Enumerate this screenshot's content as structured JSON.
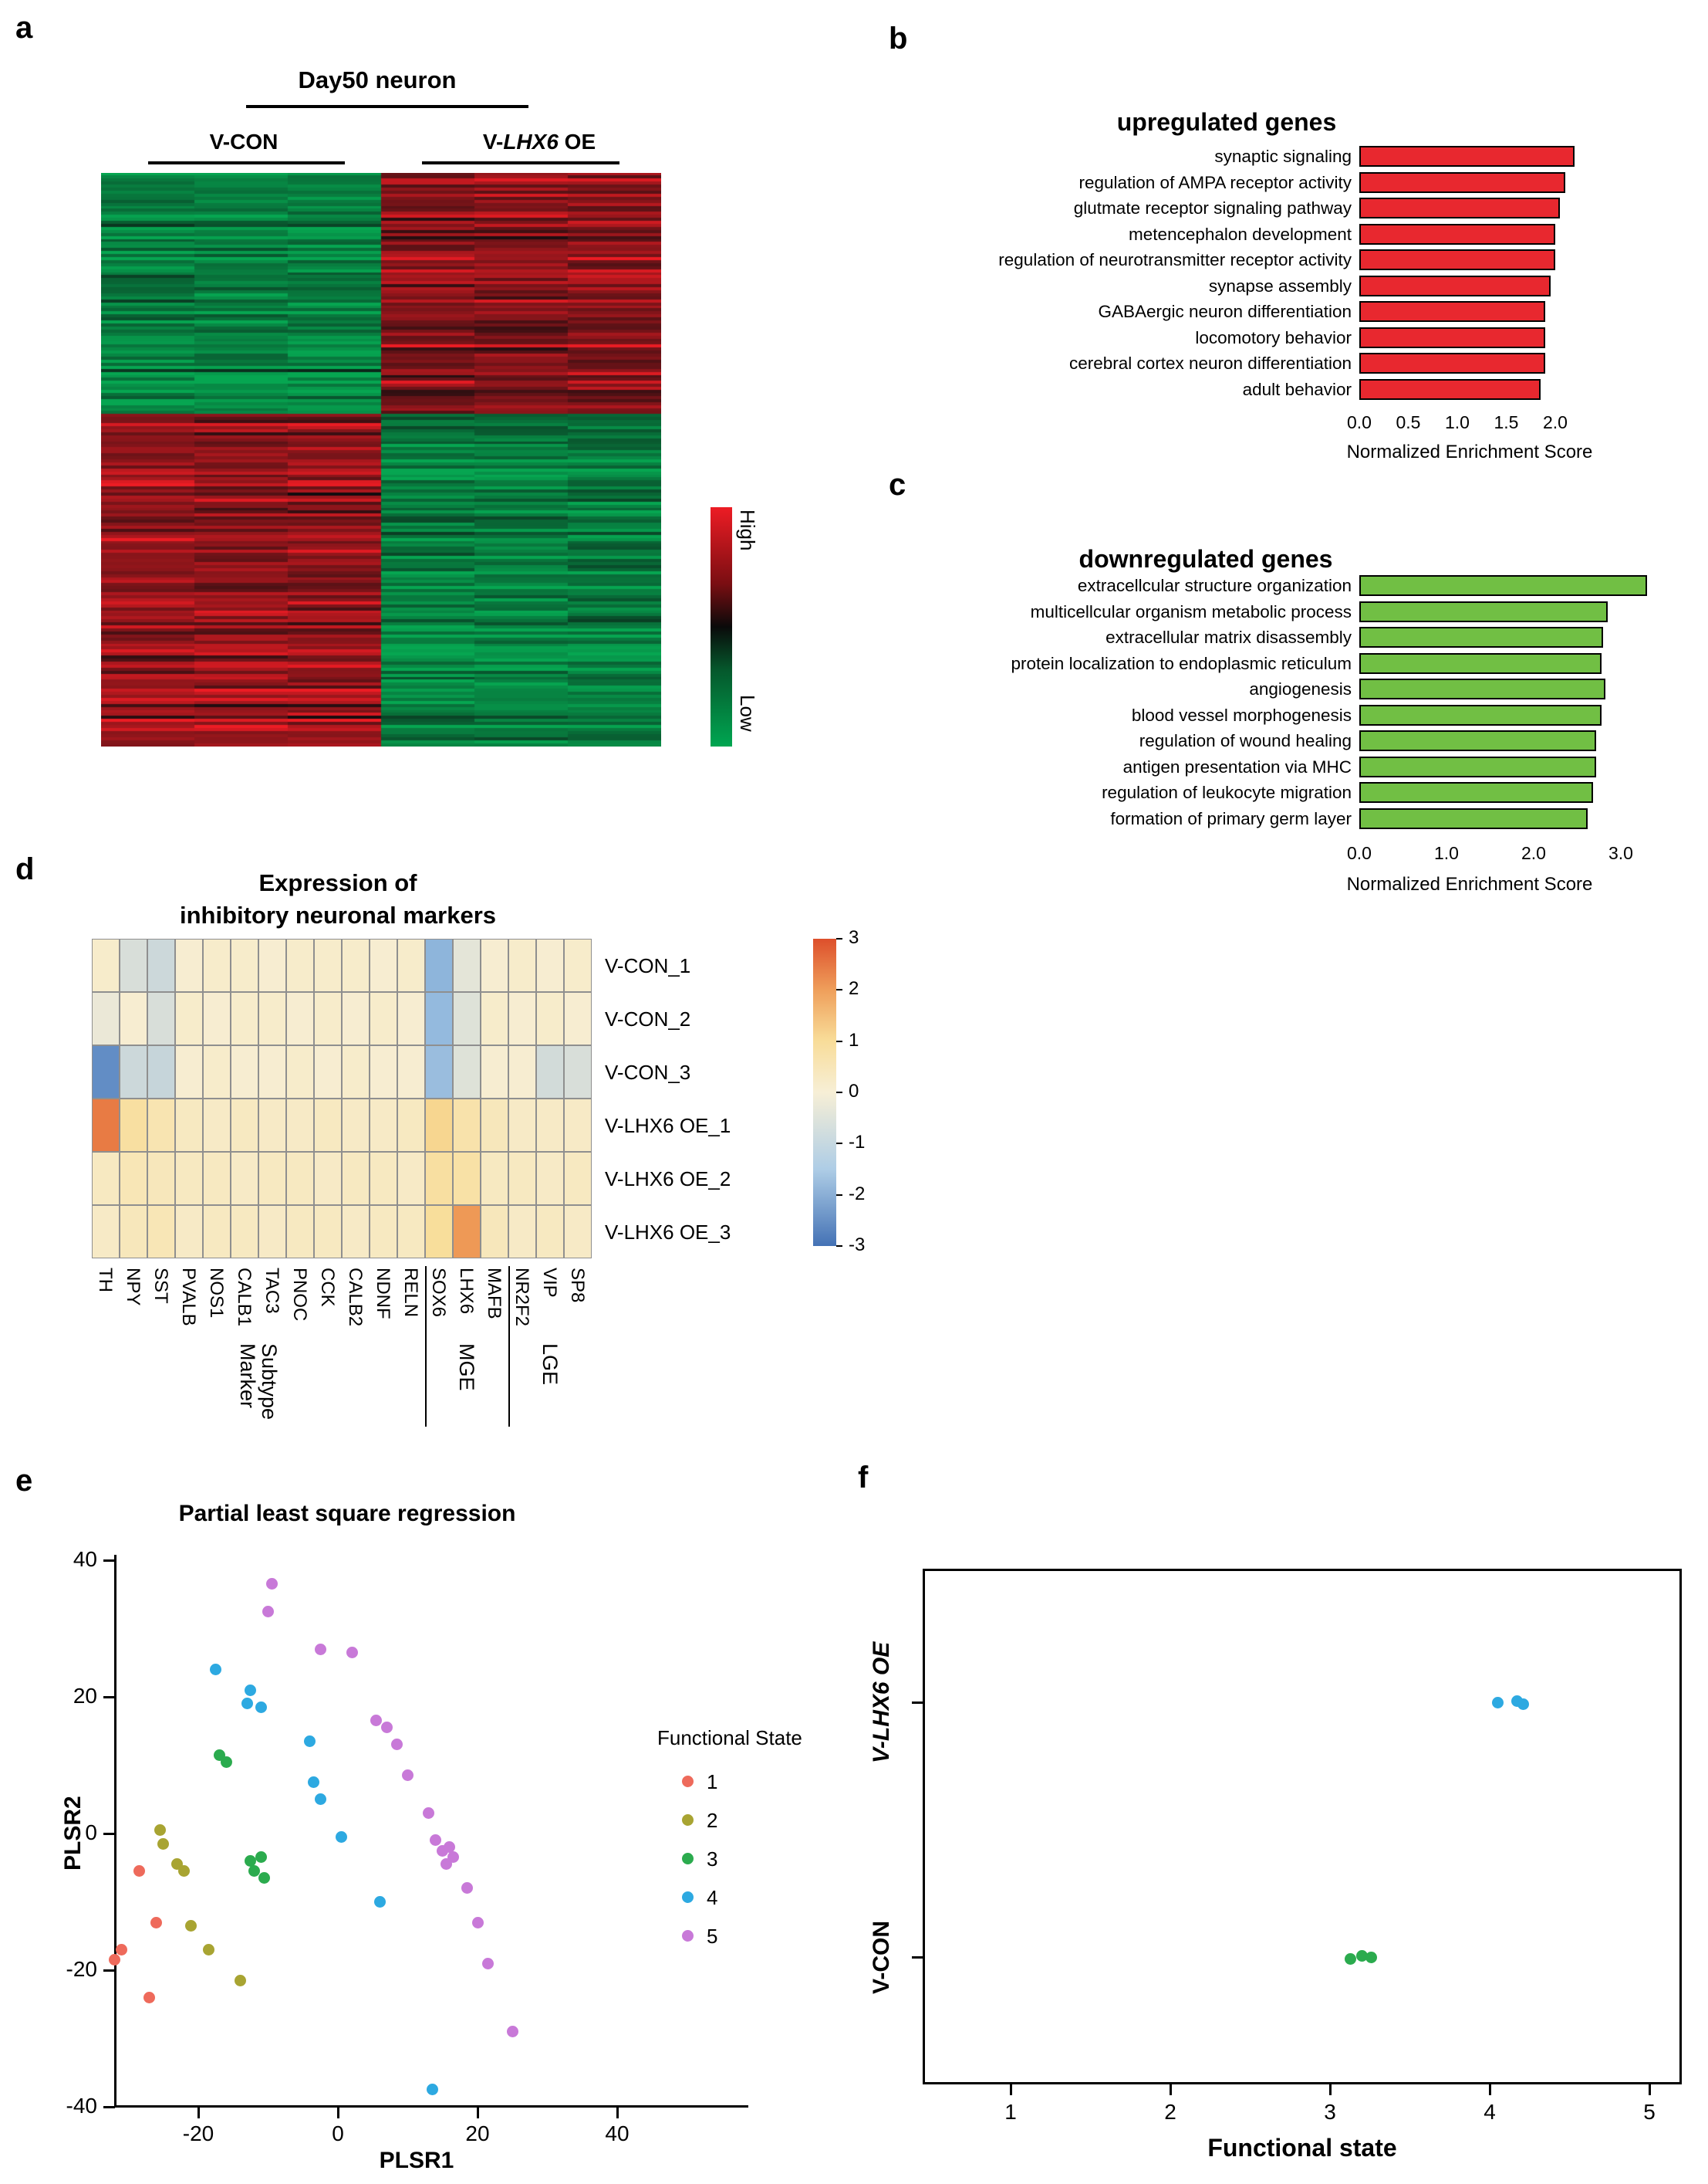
{
  "panels": {
    "a": {
      "label": "a",
      "group2": {
        "pre": "V-",
        "italic": "LHX6",
        "post": " OE"
      },
      "legend_high": "High",
      "legend_low": "Low"
    },
    "b": {
      "label": "b"
    },
    "c": {
      "label": "c"
    },
    "d": {
      "label": "d"
    },
    "e": {
      "label": "e"
    },
    "f": {
      "label": "f"
    }
  },
  "chart_data": [
    {
      "id": "a",
      "type": "heatmap",
      "title": "Day50 neuron",
      "col_groups": [
        {
          "label": "V-CON",
          "n": 3
        },
        {
          "label": "V-LHX6 OE",
          "n": 3
        }
      ],
      "n_rows": 190,
      "row_blocks": [
        {
          "fraction": 0.42,
          "group_means": [
            -0.8,
            0.55
          ]
        },
        {
          "fraction": 0.58,
          "group_means": [
            0.6,
            -0.75
          ]
        }
      ],
      "colormap": {
        "low_color": "#00a651",
        "mid_color": "#0a0a0a",
        "high_color": "#ed1c24",
        "low_label": "Low",
        "high_label": "High"
      }
    },
    {
      "id": "b",
      "type": "bar",
      "title": "upregulated genes",
      "categories": [
        "synaptic signaling",
        "regulation of AMPA receptor activity",
        "glutmate receptor signaling pathway",
        "metencephalon development",
        "regulation of neurotransmitter receptor activity",
        "synapse assembly",
        "GABAergic neuron differentiation",
        "locomotory behavior",
        "cerebral cortex neuron differentiation",
        "adult behavior"
      ],
      "values": [
        2.2,
        2.1,
        2.05,
        2.0,
        2.0,
        1.95,
        1.9,
        1.9,
        1.9,
        1.85
      ],
      "xlabel": "Normalized Enrichment Score",
      "xticks": [
        "0.0",
        "0.5",
        "1.0",
        "1.5",
        "2.0"
      ],
      "xlim": [
        0,
        2.3
      ],
      "bar_color": "#e8282f"
    },
    {
      "id": "c",
      "type": "bar",
      "title": "downregulated genes",
      "categories": [
        "extracellcular structure organization",
        "multicellcular organism metabolic process",
        "extracellular matrix disassembly",
        "protein localization to endoplasmic reticulum",
        "angiogenesis",
        "blood vessel morphogenesis",
        "regulation of wound healing",
        "antigen presentation via MHC",
        "regulation of leukocyte migration",
        "formation of primary germ layer"
      ],
      "values": [
        3.3,
        2.85,
        2.8,
        2.78,
        2.82,
        2.78,
        2.72,
        2.72,
        2.68,
        2.62
      ],
      "xlabel": "Normalized Enrichment Score",
      "xticks": [
        "0.0",
        "1.0",
        "2.0",
        "3.0"
      ],
      "xlim": [
        0,
        3.4
      ],
      "bar_color": "#71bf44"
    },
    {
      "id": "d",
      "type": "heatmap",
      "title_lines": [
        "Expression of",
        "inhibitory neuronal markers"
      ],
      "rows": [
        "V-CON_1",
        "V-CON_2",
        "V-CON_3",
        "V-LHX6 OE_1",
        "V-LHX6 OE_2",
        "V-LHX6 OE_3"
      ],
      "cols": [
        "TH",
        "NPY",
        "SST",
        "PVALB",
        "NOS1",
        "CALB1",
        "TAC3",
        "PNOC",
        "CCK",
        "CALB2",
        "NDNF",
        "RELN",
        "SOX6",
        "LHX6",
        "MAFB",
        "NR2F2",
        "VIP",
        "SP8"
      ],
      "values": [
        [
          0.2,
          -0.5,
          -0.7,
          0.1,
          0.2,
          0.2,
          0.1,
          0.2,
          0.2,
          0.2,
          0.1,
          0.2,
          -1.7,
          -0.3,
          0.1,
          0.2,
          0.1,
          0.2
        ],
        [
          -0.2,
          0.1,
          -0.5,
          0.2,
          0.1,
          0.2,
          0.2,
          0.1,
          0.2,
          0.1,
          0.2,
          0.1,
          -1.6,
          -0.4,
          0.2,
          0.1,
          0.2,
          0.1
        ],
        [
          -2.5,
          -0.7,
          -0.8,
          0.1,
          0.2,
          0.1,
          0.1,
          0.2,
          0.1,
          0.2,
          0.1,
          0.1,
          -1.5,
          -0.4,
          0.1,
          0.1,
          -0.6,
          -0.5
        ],
        [
          2.7,
          1.0,
          0.7,
          0.4,
          0.3,
          0.4,
          0.3,
          0.3,
          0.4,
          0.3,
          0.3,
          0.4,
          1.3,
          0.8,
          0.5,
          0.3,
          0.3,
          0.3
        ],
        [
          0.4,
          0.6,
          0.5,
          0.4,
          0.4,
          0.3,
          0.4,
          0.4,
          0.3,
          0.4,
          0.4,
          0.3,
          1.0,
          0.9,
          0.4,
          0.4,
          0.3,
          0.4
        ],
        [
          0.3,
          0.5,
          0.6,
          0.3,
          0.4,
          0.4,
          0.3,
          0.4,
          0.4,
          0.3,
          0.4,
          0.4,
          1.1,
          2.3,
          0.5,
          0.3,
          0.4,
          0.3
        ]
      ],
      "col_groups": [
        {
          "label": "Subtype\nMarker",
          "start": 0,
          "end": 11
        },
        {
          "label": "MGE",
          "start": 12,
          "end": 14
        },
        {
          "label": "LGE",
          "start": 15,
          "end": 17
        }
      ],
      "colorbar_ticks": [
        "3",
        "2",
        "1",
        "0",
        "-1",
        "-2",
        "-3"
      ],
      "vmin": -3.2,
      "vmax": 3.2
    },
    {
      "id": "e",
      "type": "scatter",
      "title": "Partial least square regression",
      "xlabel": "PLSR1",
      "ylabel": "PLSR2",
      "xticks": [
        "-20",
        "0",
        "20",
        "40"
      ],
      "yticks": [
        "40",
        "20",
        "0",
        "-20",
        "-40"
      ],
      "xlim": [
        -32,
        58
      ],
      "ylim": [
        -40,
        40
      ],
      "legend_title": "Functional State",
      "series": [
        {
          "name": "1",
          "color": "#ee6a5b",
          "points": [
            [
              -32,
              -18.5
            ],
            [
              -31,
              -17
            ],
            [
              -28.5,
              -5.5
            ],
            [
              -27,
              -24
            ],
            [
              -26,
              -13
            ]
          ]
        },
        {
          "name": "2",
          "color": "#a8a432",
          "points": [
            [
              -25.5,
              0.5
            ],
            [
              -25,
              -1.5
            ],
            [
              -23,
              -4.5
            ],
            [
              -22,
              -5.5
            ],
            [
              -21,
              -13.5
            ],
            [
              -18.5,
              -17
            ],
            [
              -14,
              -21.5
            ]
          ]
        },
        {
          "name": "3",
          "color": "#2bab4e",
          "points": [
            [
              -17,
              11.5
            ],
            [
              -16,
              10.5
            ],
            [
              -12.5,
              -4
            ],
            [
              -12,
              -5.5
            ],
            [
              -11,
              -3.5
            ],
            [
              -10.5,
              -6.5
            ]
          ]
        },
        {
          "name": "4",
          "color": "#2da9e1",
          "points": [
            [
              -17.5,
              24
            ],
            [
              -12.5,
              21
            ],
            [
              -13,
              19
            ],
            [
              -11,
              18.5
            ],
            [
              -4,
              13.5
            ],
            [
              -3.5,
              7.5
            ],
            [
              -2.5,
              5
            ],
            [
              0.5,
              -0.5
            ],
            [
              6,
              -10
            ],
            [
              13.5,
              -37.5
            ]
          ]
        },
        {
          "name": "5",
          "color": "#c879d8",
          "points": [
            [
              -9.5,
              36.5
            ],
            [
              -10,
              32.5
            ],
            [
              -2.5,
              27
            ],
            [
              2,
              26.5
            ],
            [
              5.5,
              16.5
            ],
            [
              7,
              15.5
            ],
            [
              8.5,
              13
            ],
            [
              10,
              8.5
            ],
            [
              13,
              3
            ],
            [
              14,
              -1
            ],
            [
              15,
              -2.5
            ],
            [
              16,
              -2
            ],
            [
              16.5,
              -3.5
            ],
            [
              15.5,
              -4.5
            ],
            [
              18.5,
              -8
            ],
            [
              20,
              -13
            ],
            [
              21.5,
              -19
            ],
            [
              25,
              -29
            ]
          ]
        }
      ]
    },
    {
      "id": "f",
      "type": "scatter",
      "xlabel": "Functional state",
      "xticks": [
        "1",
        "2",
        "3",
        "4",
        "5"
      ],
      "categories": [
        "V-LHX6 OE",
        "V-CON"
      ],
      "series": [
        {
          "name": "V-CON",
          "color": "#2bab4e",
          "points": [
            [
              3.13,
              2
            ],
            [
              3.2,
              -2
            ],
            [
              3.26,
              0
            ]
          ]
        },
        {
          "name": "V-LHX6 OE",
          "color": "#2da9e1",
          "points": [
            [
              4.05,
              0
            ],
            [
              4.17,
              -2
            ],
            [
              4.21,
              2
            ]
          ]
        }
      ]
    }
  ]
}
